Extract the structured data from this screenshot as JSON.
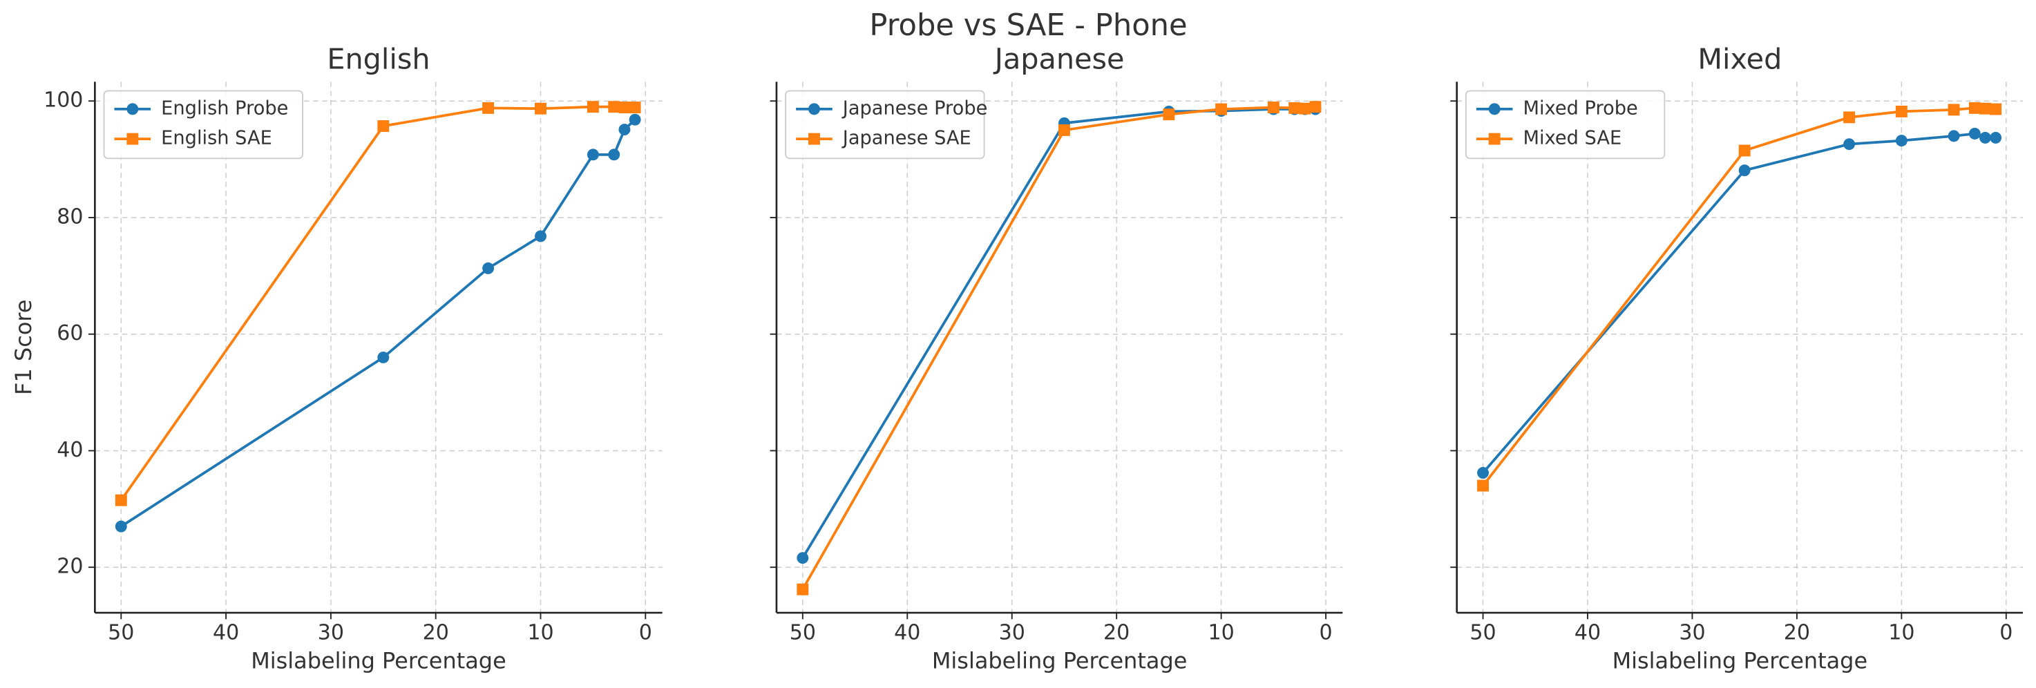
{
  "title": "Probe vs SAE - Phone",
  "chart_data": [
    {
      "type": "line",
      "title": "English",
      "x_label": "Mislabeling Percentage",
      "y_label": "F1 Score",
      "x": [
        50,
        25,
        15,
        10,
        5,
        3,
        2,
        1
      ],
      "series": [
        {
          "name": "English Probe",
          "color": "#1f77b4",
          "marker": "circle",
          "values": [
            27.0,
            56.0,
            71.3,
            76.8,
            90.8,
            90.8,
            95.1,
            96.8
          ]
        },
        {
          "name": "English SAE",
          "color": "#ff7f0e",
          "marker": "square",
          "values": [
            31.5,
            95.7,
            98.8,
            98.7,
            99.0,
            99.0,
            98.9,
            98.9
          ]
        }
      ],
      "xlim": [
        52.5,
        -1.6
      ],
      "xticks": [
        50,
        40,
        30,
        20,
        10,
        0
      ],
      "ylim": [
        12.2,
        103.3
      ],
      "yticks": [
        20,
        40,
        60,
        80,
        100
      ],
      "grid": true,
      "legend": "upper left"
    },
    {
      "type": "line",
      "title": "Japanese",
      "x_label": "Mislabeling Percentage",
      "x": [
        50,
        25,
        15,
        10,
        5,
        3,
        2,
        1
      ],
      "series": [
        {
          "name": "Japanese Probe",
          "color": "#1f77b4",
          "marker": "circle",
          "values": [
            21.6,
            96.2,
            98.2,
            98.3,
            98.6,
            98.6,
            98.6,
            98.6
          ]
        },
        {
          "name": "Japanese SAE",
          "color": "#ff7f0e",
          "marker": "square",
          "values": [
            16.2,
            95.0,
            97.7,
            98.6,
            98.9,
            98.8,
            98.7,
            99.0
          ]
        }
      ],
      "xlim": [
        52.5,
        -1.6
      ],
      "xticks": [
        50,
        40,
        30,
        20,
        10,
        0
      ],
      "ylim": [
        12.2,
        103.3
      ],
      "yticks": [
        20,
        40,
        60,
        80,
        100
      ],
      "grid": true,
      "legend": "upper left"
    },
    {
      "type": "line",
      "title": "Mixed",
      "x_label": "Mislabeling Percentage",
      "x": [
        50,
        25,
        15,
        10,
        5,
        3,
        2,
        1
      ],
      "series": [
        {
          "name": "Mixed Probe",
          "color": "#1f77b4",
          "marker": "circle",
          "values": [
            36.2,
            88.1,
            92.6,
            93.2,
            94.0,
            94.4,
            93.7,
            93.7
          ]
        },
        {
          "name": "Mixed SAE",
          "color": "#ff7f0e",
          "marker": "square",
          "values": [
            34.0,
            91.5,
            97.2,
            98.2,
            98.5,
            98.8,
            98.7,
            98.6
          ]
        }
      ],
      "xlim": [
        52.5,
        -1.6
      ],
      "xticks": [
        50,
        40,
        30,
        20,
        10,
        0
      ],
      "ylim": [
        12.2,
        103.3
      ],
      "yticks": [
        20,
        40,
        60,
        80,
        100
      ],
      "grid": true,
      "legend": "upper left"
    }
  ]
}
